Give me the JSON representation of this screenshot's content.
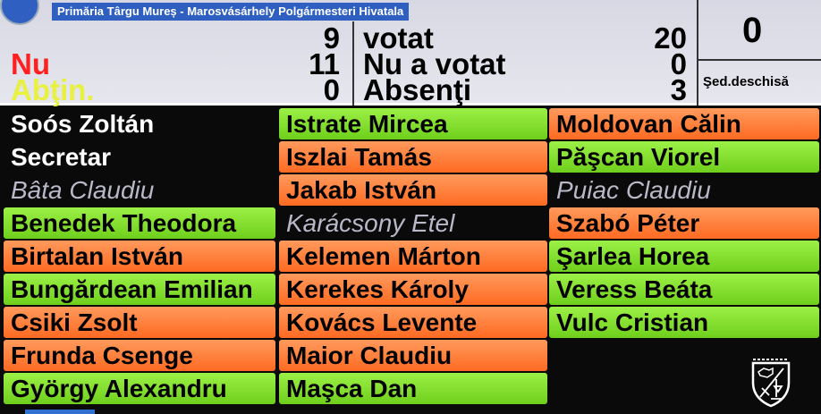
{
  "banner": {
    "title": "Primăria Târgu Mureș - Marosvásárhely Polgármesteri Hivatala"
  },
  "tally": {
    "da_count": "9",
    "nu_label": "Nu",
    "nu_count": "11",
    "abtin_label": "Abţin.",
    "abtin_count": "0",
    "votat_label": "votat",
    "votat_count": "20",
    "nu_a_votat_label": "Nu a votat",
    "nu_a_votat_count": "0",
    "absenti_label": "Absenţi",
    "absenti_count": "3",
    "right_count": "0",
    "session_status": "Şed.deschisă"
  },
  "colors": {
    "for": "#7ad829",
    "against": "#ff7a35",
    "absent": "#000000",
    "nu_label": "#ff2020",
    "abtin_label": "#e8f040"
  },
  "columns": [
    [
      {
        "name": "Soós Zoltán",
        "status": "chair"
      },
      {
        "name": "Secretar",
        "status": "chair"
      },
      {
        "name": "Bâta Claudiu",
        "status": "absent"
      },
      {
        "name": "Benedek Theodora",
        "status": "for"
      },
      {
        "name": "Birtalan István",
        "status": "against"
      },
      {
        "name": "Bungărdean Emilian",
        "status": "for"
      },
      {
        "name": "Csiki  Zsolt",
        "status": "against"
      },
      {
        "name": "Frunda Csenge",
        "status": "against"
      },
      {
        "name": "György Alexandru",
        "status": "for"
      }
    ],
    [
      {
        "name": "Istrate Mircea",
        "status": "for"
      },
      {
        "name": "Iszlai Tamás",
        "status": "against"
      },
      {
        "name": "Jakab István",
        "status": "against"
      },
      {
        "name": "Karácsony Etel",
        "status": "absent"
      },
      {
        "name": "Kelemen Márton",
        "status": "against"
      },
      {
        "name": "Kerekes Károly",
        "status": "against"
      },
      {
        "name": "Kovács Levente",
        "status": "against"
      },
      {
        "name": "Maior Claudiu",
        "status": "against"
      },
      {
        "name": "Maşca Dan",
        "status": "for"
      }
    ],
    [
      {
        "name": "Moldovan Călin",
        "status": "against"
      },
      {
        "name": "Păşcan Viorel",
        "status": "for"
      },
      {
        "name": "Puiac Claudiu",
        "status": "absent"
      },
      {
        "name": "Szabó Péter",
        "status": "against"
      },
      {
        "name": "Şarlea Horea",
        "status": "for"
      },
      {
        "name": "Veress  Beáta",
        "status": "for"
      },
      {
        "name": "Vulc Cristian",
        "status": "for"
      }
    ]
  ]
}
